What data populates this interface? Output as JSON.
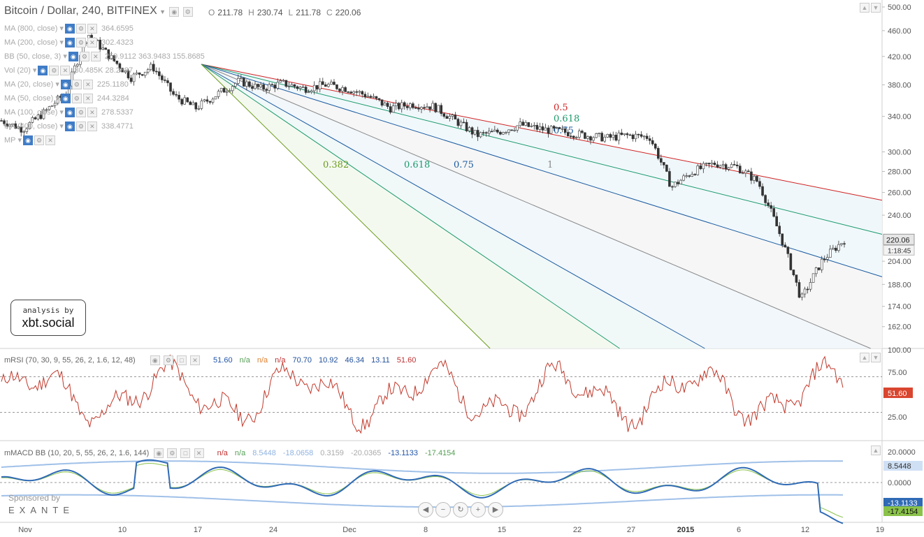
{
  "header": {
    "title": "Bitcoin / Dollar, 240, BITFINEX",
    "ohlc": [
      {
        "k": "O",
        "v": "211.78"
      },
      {
        "k": "H",
        "v": "230.74"
      },
      {
        "k": "L",
        "v": "211.78"
      },
      {
        "k": "C",
        "v": "220.06"
      }
    ]
  },
  "indicators": [
    {
      "name": "MA (800, close)",
      "value": "364.6595"
    },
    {
      "name": "MA (200, close)",
      "value": "302.4323"
    },
    {
      "name": "BB (50, close, 3)",
      "value": "259.9112  363.9483  155.8685"
    },
    {
      "name": "Vol (20)",
      "value": "30.485K  28.2887"
    },
    {
      "name": "MA (20, close)",
      "value": "225.1180"
    },
    {
      "name": "MA (50, close)",
      "value": "244.3284"
    },
    {
      "name": "MA (100, close)",
      "value": "278.5337"
    },
    {
      "name": "MA (400, close)",
      "value": "338.4771"
    },
    {
      "name": "MP",
      "value": ""
    }
  ],
  "branding": {
    "badge_top": "analysis by",
    "badge_bottom": "xbt.social",
    "sponsor": "Sponsored by",
    "sponsor_name": "EXANTE"
  },
  "price_axis": {
    "ticks": [
      "500.00",
      "460.00",
      "420.00",
      "380.00",
      "340.00",
      "300.00",
      "280.00",
      "260.00",
      "240.00",
      "204.00",
      "188.00",
      "174.00",
      "162.00"
    ],
    "last_price": "220.06",
    "countdown": "1:18:45"
  },
  "rsi": {
    "title": "mRSI (70, 30, 9, 55, 26, 2, 1.6, 12, 48)",
    "values": [
      {
        "v": "51.60",
        "c": "#2255aa"
      },
      {
        "v": "n/a",
        "c": "#55a055"
      },
      {
        "v": "n/a",
        "c": "#e08030"
      },
      {
        "v": "n/a",
        "c": "#c03030"
      },
      {
        "v": "70.70",
        "c": "#1f4f9a"
      },
      {
        "v": "10.92",
        "c": "#1f4f9a"
      },
      {
        "v": "46.34",
        "c": "#1f4f9a"
      },
      {
        "v": "13.11",
        "c": "#1f4f9a"
      },
      {
        "v": "51.60",
        "c": "#c03030"
      }
    ],
    "ticks": [
      "100.00",
      "75.00",
      "25.00"
    ],
    "last": "51.60"
  },
  "macd": {
    "title": "mMACD BB (10, 20, 5, 55, 26, 2, 1.6, 144)",
    "values": [
      {
        "v": "n/a",
        "c": "#c03030"
      },
      {
        "v": "n/a",
        "c": "#55a055"
      },
      {
        "v": "8.5448",
        "c": "#8fb3e0"
      },
      {
        "v": "-18.0658",
        "c": "#8fb3e0"
      },
      {
        "v": "0.3159",
        "c": "#aaaaaa"
      },
      {
        "v": "-20.0365",
        "c": "#aaaaaa"
      },
      {
        "v": "-13.1133",
        "c": "#2255aa"
      },
      {
        "v": "-17.4154",
        "c": "#55a055"
      }
    ],
    "ticks": [
      "20.0000",
      "0.0000"
    ],
    "bb_last": "8.5448",
    "macd_last": "-13.1133",
    "signal_last": "-17.4154"
  },
  "time_axis": [
    "Nov",
    "10",
    "17",
    "24",
    "Dec",
    "8",
    "15",
    "22",
    "27",
    "2015",
    "6",
    "12",
    "19"
  ],
  "nav_buttons": [
    "scroll-left",
    "zoom-out",
    "reset",
    "zoom-in",
    "scroll-right"
  ],
  "chart_data": {
    "type": "line",
    "title": "Bitcoin / Dollar, 240, BITFINEX",
    "y_scale": "log",
    "ylim": [
      150,
      500
    ],
    "fan_labels": [
      {
        "label": "0.382",
        "color": "#6a9a1a"
      },
      {
        "label": "0.618",
        "color": "#1a9a6a"
      },
      {
        "label": "0.75",
        "color": "#1a5aa0"
      },
      {
        "label": "1",
        "color": "#888888"
      },
      {
        "label": "0.5",
        "color": "#d02020"
      },
      {
        "label": "0.618",
        "color": "#1a9a6a"
      },
      {
        "label": "0.75",
        "color": "#1a5aa0"
      }
    ],
    "price_path": [
      [
        "Nov 01",
        335
      ],
      [
        "Nov 04",
        325
      ],
      [
        "Nov 07",
        345
      ],
      [
        "Nov 10",
        370
      ],
      [
        "Nov 12",
        455
      ],
      [
        "Nov 13",
        420
      ],
      [
        "Nov 15",
        390
      ],
      [
        "Nov 17",
        405
      ],
      [
        "Nov 19",
        365
      ],
      [
        "Nov 21",
        350
      ],
      [
        "Nov 23",
        368
      ],
      [
        "Nov 25",
        385
      ],
      [
        "Nov 27",
        375
      ],
      [
        "Nov 29",
        382
      ],
      [
        "Dec 01",
        375
      ],
      [
        "Dec 03",
        380
      ],
      [
        "Dec 06",
        375
      ],
      [
        "Dec 08",
        365
      ],
      [
        "Dec 10",
        350
      ],
      [
        "Dec 12",
        355
      ],
      [
        "Dec 14",
        352
      ],
      [
        "Dec 16",
        335
      ],
      [
        "Dec 18",
        318
      ],
      [
        "Dec 20",
        322
      ],
      [
        "Dec 22",
        330
      ],
      [
        "Dec 24",
        325
      ],
      [
        "Dec 26",
        322
      ],
      [
        "Dec 28",
        318
      ],
      [
        "Dec 30",
        315
      ],
      [
        "Jan 01",
        318
      ],
      [
        "Jan 02",
        316
      ],
      [
        "Jan 04",
        265
      ],
      [
        "Jan 06",
        280
      ],
      [
        "Jan 08",
        288
      ],
      [
        "Jan 10",
        285
      ],
      [
        "Jan 12",
        270
      ],
      [
        "Jan 13",
        225
      ],
      [
        "Jan 14",
        178
      ],
      [
        "Jan 15",
        205
      ],
      [
        "Jan 15b",
        220
      ]
    ],
    "rsi_levels": [
      70,
      30
    ],
    "macd_zero": 0
  }
}
